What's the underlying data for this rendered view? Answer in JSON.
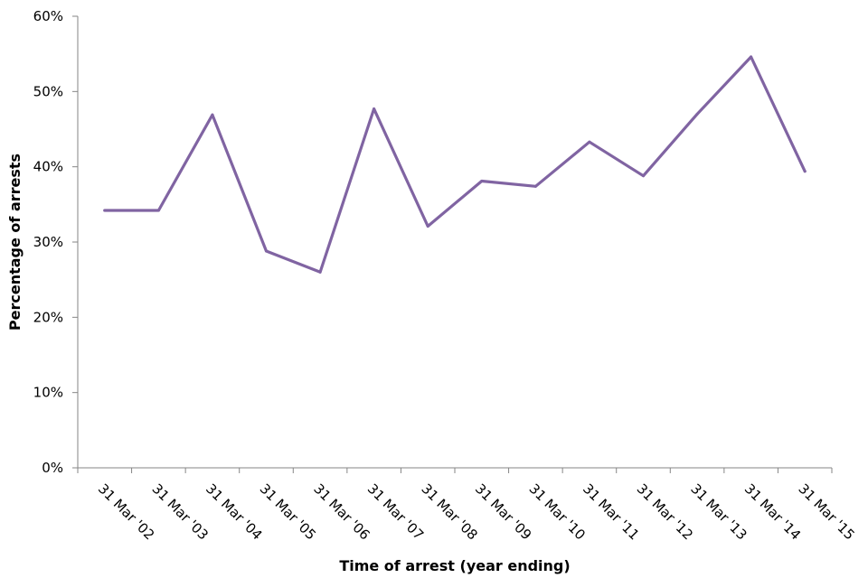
{
  "chart_data": {
    "type": "line",
    "title": "",
    "xlabel": "Time of arrest (year ending)",
    "ylabel": "Percentage of arrests",
    "categories": [
      "31 Mar '02",
      "31 Mar '03",
      "31 Mar '04",
      "31 Mar '05",
      "31 Mar '06",
      "31 Mar '07",
      "31 Mar '08",
      "31 Mar '09",
      "31 Mar '10",
      "31 Mar '11",
      "31 Mar '12",
      "31 Mar '13",
      "31 Mar '14",
      "31 Mar '15"
    ],
    "series": [
      {
        "values": [
          34.2,
          34.2,
          46.9,
          28.8,
          26.0,
          47.7,
          32.1,
          38.1,
          37.4,
          43.3,
          38.8,
          47.0,
          54.6,
          39.4
        ]
      }
    ],
    "ylim": [
      0,
      60
    ],
    "yticks": [
      0,
      10,
      20,
      30,
      40,
      50,
      60
    ],
    "ytick_labels": [
      "0%",
      "10%",
      "20%",
      "30%",
      "40%",
      "50%",
      "60%"
    ],
    "grid": false,
    "line_color": "#8064a2",
    "axis_color": "#868686"
  }
}
